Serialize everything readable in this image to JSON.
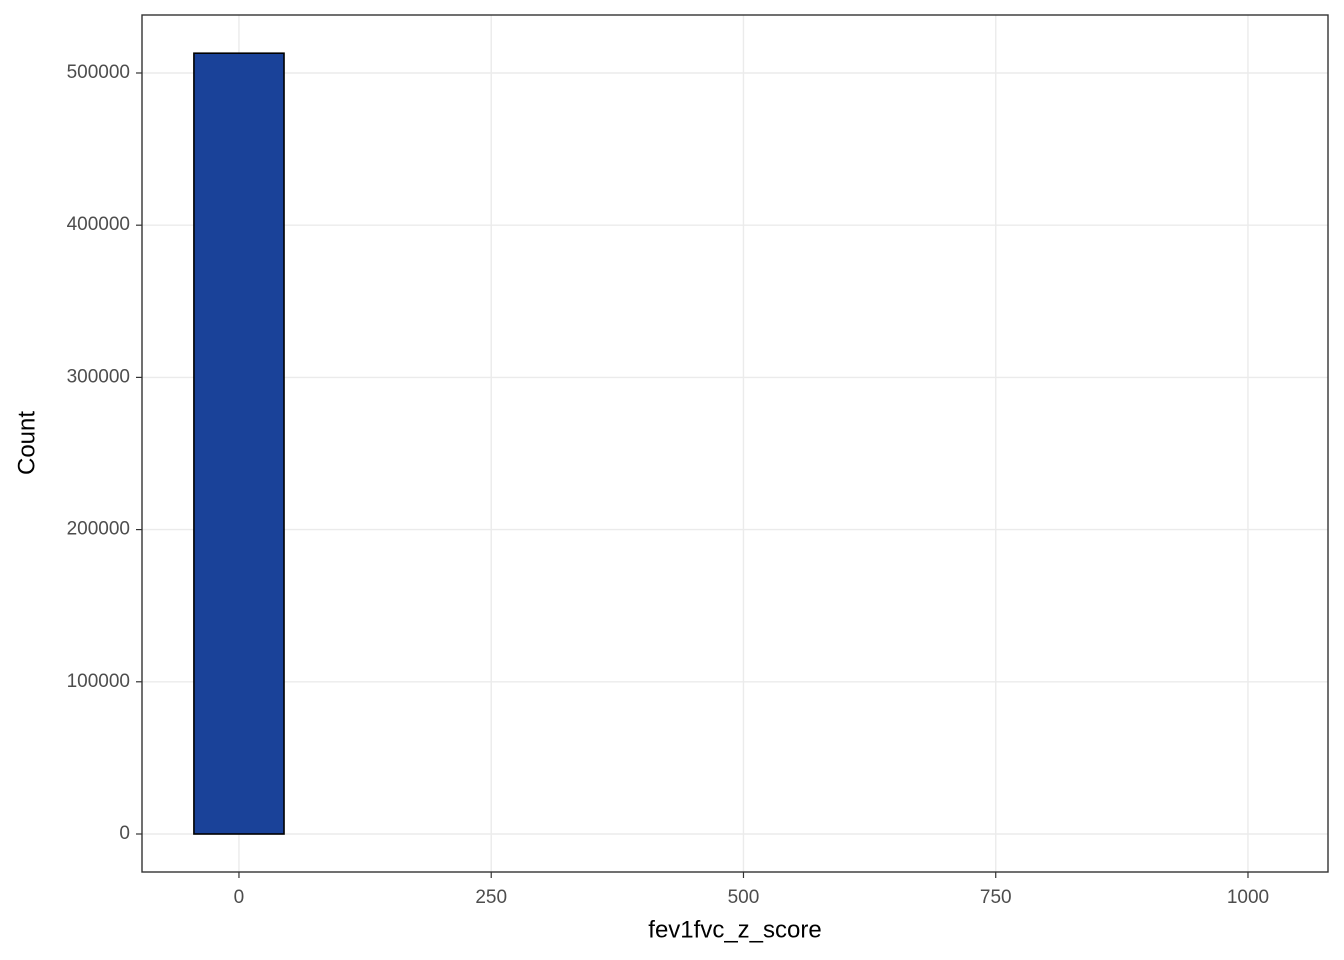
{
  "chart_data": {
    "type": "histogram",
    "x_label": "fev1fvc_z_score",
    "y_label": "Count",
    "bins": [
      -44.64,
      44.64,
      133.92,
      223.2,
      312.48,
      401.76,
      491.04,
      580.32,
      669.6,
      758.88,
      848.16,
      937.44,
      1026.72
    ],
    "counts": [
      513000,
      0,
      0,
      0,
      0,
      0,
      0,
      0,
      0,
      0,
      0,
      0
    ],
    "color": "#1a4299",
    "edge_color": "#000000",
    "xlim": [
      -96.1,
      1079.3
    ],
    "ylim": [
      -24970,
      538100
    ],
    "xticks": [
      0,
      250,
      500,
      750,
      1000
    ],
    "yticks": [
      0,
      100000,
      200000,
      300000,
      400000,
      500000
    ],
    "grid": true
  }
}
